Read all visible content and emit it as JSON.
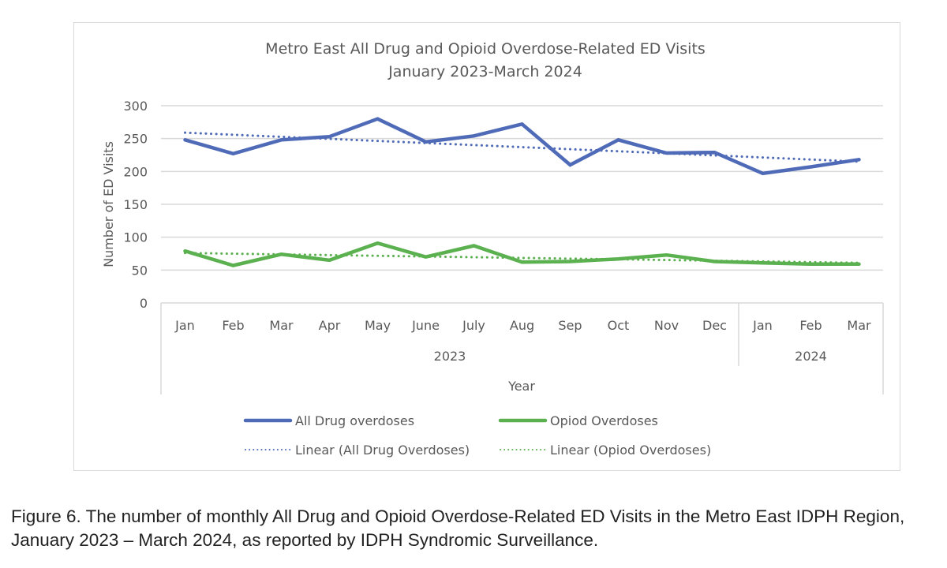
{
  "chart_data": {
    "type": "line",
    "title": "Metro East All Drug and Opioid Overdose-Related ED Visits",
    "subtitle": "January 2023-March 2024",
    "xlabel": "Year",
    "ylabel": "Number of ED Visits",
    "ylim": [
      0,
      300
    ],
    "yticks": [
      0,
      50,
      100,
      150,
      200,
      250,
      300
    ],
    "grid": true,
    "legend_position": "bottom",
    "categories": [
      "Jan",
      "Feb",
      "Mar",
      "Apr",
      "May",
      "June",
      "July",
      "Aug",
      "Sep",
      "Oct",
      "Nov",
      "Dec",
      "Jan",
      "Feb",
      "Mar"
    ],
    "category_groups": [
      {
        "label": "2023",
        "count": 12
      },
      {
        "label": "2024",
        "count": 3
      }
    ],
    "series": [
      {
        "name": "All Drug overdoses",
        "color": "#4f6bb8",
        "style": "solid",
        "values": [
          248,
          227,
          248,
          253,
          280,
          245,
          254,
          272,
          210,
          248,
          228,
          229,
          197,
          207,
          218
        ]
      },
      {
        "name": "Opiod Overdoses",
        "color": "#5bb04f",
        "style": "solid",
        "values": [
          79,
          57,
          74,
          65,
          91,
          70,
          87,
          62,
          63,
          67,
          73,
          63,
          61,
          59,
          59
        ]
      }
    ],
    "trendlines": [
      {
        "name": "Linear (All Drug Overdoses)",
        "color": "#4f6bb8",
        "style": "dotted",
        "start": 259,
        "end": 215
      },
      {
        "name": "Linear (Opiod Overdoses)",
        "color": "#5bb04f",
        "style": "dotted",
        "start": 76,
        "end": 61
      }
    ]
  },
  "caption": "Figure 6. The number of monthly All Drug and Opioid Overdose-Related ED Visits in the Metro East IDPH Region, January 2023 – March 2024, as reported by IDPH Syndromic Surveillance."
}
